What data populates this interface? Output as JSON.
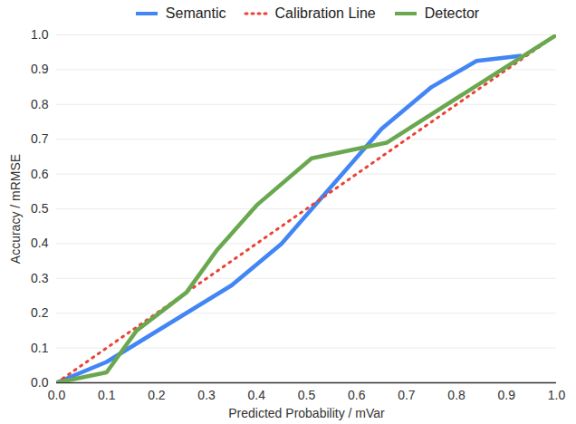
{
  "chart_data": {
    "type": "line",
    "xlabel": "Predicted Probability / mVar",
    "ylabel": "Accuracy / mRMSE",
    "xlim": [
      0,
      1
    ],
    "ylim": [
      0,
      1
    ],
    "xticks": [
      {
        "value": 0,
        "label": "0.0"
      },
      0.1,
      0.2,
      0.3,
      0.4,
      0.5,
      0.6,
      0.7,
      0.8,
      0.9,
      {
        "value": 1,
        "label": "1.0"
      }
    ],
    "yticks": [
      {
        "value": 0,
        "label": "0.0"
      },
      0.1,
      0.2,
      0.3,
      0.4,
      0.5,
      0.6,
      0.7,
      0.8,
      0.9,
      {
        "value": 1,
        "label": "1.0"
      }
    ],
    "grid": true,
    "legend": "top",
    "series": [
      {
        "name": "Semantic",
        "color": "#4285f4",
        "line_style": "solid",
        "x": [
          0,
          0.1,
          0.35,
          0.45,
          0.65,
          0.75,
          0.84,
          0.93
        ],
        "values": [
          0,
          0.06,
          0.28,
          0.4,
          0.73,
          0.85,
          0.925,
          0.94
        ]
      },
      {
        "name": "Calibration Line",
        "color": "#ea4335",
        "line_style": "dotted",
        "x": [
          0,
          1
        ],
        "values": [
          0,
          1
        ]
      },
      {
        "name": "Detector",
        "color": "#6aa84f",
        "line_style": "solid",
        "x": [
          0,
          0.1,
          0.16,
          0.26,
          0.32,
          0.4,
          0.51,
          0.66,
          1
        ],
        "values": [
          0,
          0.03,
          0.15,
          0.26,
          0.38,
          0.51,
          0.645,
          0.69,
          1
        ]
      }
    ]
  }
}
